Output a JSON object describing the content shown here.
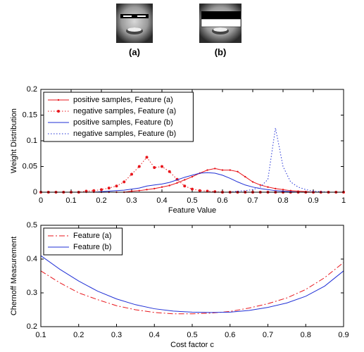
{
  "panels": [
    "(a)",
    "(b)"
  ],
  "chart_data": [
    {
      "type": "line",
      "xlabel": "Feature Value",
      "ylabel": "Weight Distribution",
      "x": [
        0,
        0.025,
        0.05,
        0.075,
        0.1,
        0.125,
        0.15,
        0.175,
        0.2,
        0.225,
        0.25,
        0.275,
        0.3,
        0.325,
        0.35,
        0.375,
        0.4,
        0.425,
        0.45,
        0.475,
        0.5,
        0.525,
        0.55,
        0.575,
        0.6,
        0.625,
        0.65,
        0.675,
        0.7,
        0.725,
        0.75,
        0.775,
        0.8,
        0.825,
        0.85,
        0.875,
        0.9,
        0.925,
        0.95,
        0.975,
        1
      ],
      "xlim": [
        0,
        1
      ],
      "xticks": [
        0,
        0.1,
        0.2,
        0.3,
        0.4,
        0.5,
        0.6,
        0.7,
        0.8,
        0.9,
        1
      ],
      "ylim": [
        0,
        0.2
      ],
      "yticks": [
        0,
        0.05,
        0.1,
        0.15,
        0.2
      ],
      "legend": "top-left",
      "series": [
        {
          "name": "positive samples, Feature (a)",
          "color": "#e8151b",
          "linestyle": "solid",
          "marker": "small-dot",
          "values": [
            0,
            0,
            0,
            0,
            0,
            0,
            0,
            0,
            0,
            0,
            0,
            0,
            0.002,
            0.003,
            0.005,
            0.007,
            0.01,
            0.013,
            0.018,
            0.024,
            0.03,
            0.037,
            0.043,
            0.046,
            0.043,
            0.043,
            0.04,
            0.03,
            0.02,
            0.014,
            0.01,
            0.007,
            0.005,
            0.003,
            0.002,
            0.001,
            0,
            0,
            0,
            0,
            0
          ]
        },
        {
          "name": "negative samples, Feature (a)",
          "color": "#e8151b",
          "linestyle": "dotted",
          "marker": "dot",
          "values": [
            0,
            0,
            0,
            0,
            0,
            0,
            0.002,
            0.003,
            0.005,
            0.008,
            0.012,
            0.02,
            0.035,
            0.05,
            0.068,
            0.048,
            0.05,
            0.04,
            0.025,
            0.012,
            0.006,
            0.003,
            0.002,
            0.001,
            0,
            0,
            0,
            0,
            0,
            0,
            0,
            0,
            0,
            0,
            0,
            0,
            0,
            0,
            0,
            0,
            0
          ]
        },
        {
          "name": "positive samples, Feature (b)",
          "color": "#1f2fd6",
          "linestyle": "solid",
          "marker": "none",
          "values": [
            0,
            0,
            0,
            0,
            0,
            0,
            0,
            0,
            0.001,
            0.002,
            0.003,
            0.004,
            0.006,
            0.008,
            0.012,
            0.014,
            0.016,
            0.019,
            0.024,
            0.029,
            0.033,
            0.037,
            0.038,
            0.037,
            0.033,
            0.027,
            0.02,
            0.014,
            0.01,
            0.007,
            0.005,
            0.003,
            0.002,
            0.001,
            0,
            0,
            0,
            0,
            0,
            0,
            0
          ]
        },
        {
          "name": "negative samples, Feature (b)",
          "color": "#1f2fd6",
          "linestyle": "dotted",
          "marker": "none",
          "values": [
            0,
            0,
            0,
            0,
            0,
            0,
            0,
            0,
            0,
            0,
            0,
            0,
            0,
            0,
            0,
            0,
            0,
            0,
            0,
            0,
            0,
            0,
            0,
            0,
            0,
            0,
            0.002,
            0.003,
            0.005,
            0.01,
            0.025,
            0.125,
            0.05,
            0.02,
            0.01,
            0.005,
            0.002,
            0.001,
            0,
            0,
            0
          ]
        }
      ]
    },
    {
      "type": "line",
      "xlabel": "Cost factor c",
      "ylabel": "Chernoff Measurement",
      "x": [
        0.1,
        0.15,
        0.2,
        0.25,
        0.3,
        0.35,
        0.4,
        0.45,
        0.5,
        0.55,
        0.6,
        0.65,
        0.7,
        0.75,
        0.8,
        0.85,
        0.9
      ],
      "xlim": [
        0.1,
        0.9
      ],
      "xticks": [
        0.1,
        0.2,
        0.3,
        0.4,
        0.5,
        0.6,
        0.7,
        0.8,
        0.9
      ],
      "ylim": [
        0.2,
        0.5
      ],
      "yticks": [
        0.2,
        0.3,
        0.4,
        0.5
      ],
      "legend": "top-left",
      "series": [
        {
          "name": "Feature (a)",
          "color": "#e8151b",
          "linestyle": "dashdot",
          "marker": "none",
          "values": [
            0.365,
            0.33,
            0.3,
            0.28,
            0.262,
            0.25,
            0.242,
            0.238,
            0.238,
            0.24,
            0.245,
            0.255,
            0.268,
            0.285,
            0.31,
            0.345,
            0.39
          ]
        },
        {
          "name": "Feature (b)",
          "color": "#1f2fd6",
          "linestyle": "solid",
          "marker": "none",
          "values": [
            0.41,
            0.37,
            0.335,
            0.305,
            0.282,
            0.265,
            0.253,
            0.246,
            0.243,
            0.242,
            0.243,
            0.248,
            0.257,
            0.27,
            0.29,
            0.32,
            0.365
          ]
        }
      ]
    }
  ]
}
